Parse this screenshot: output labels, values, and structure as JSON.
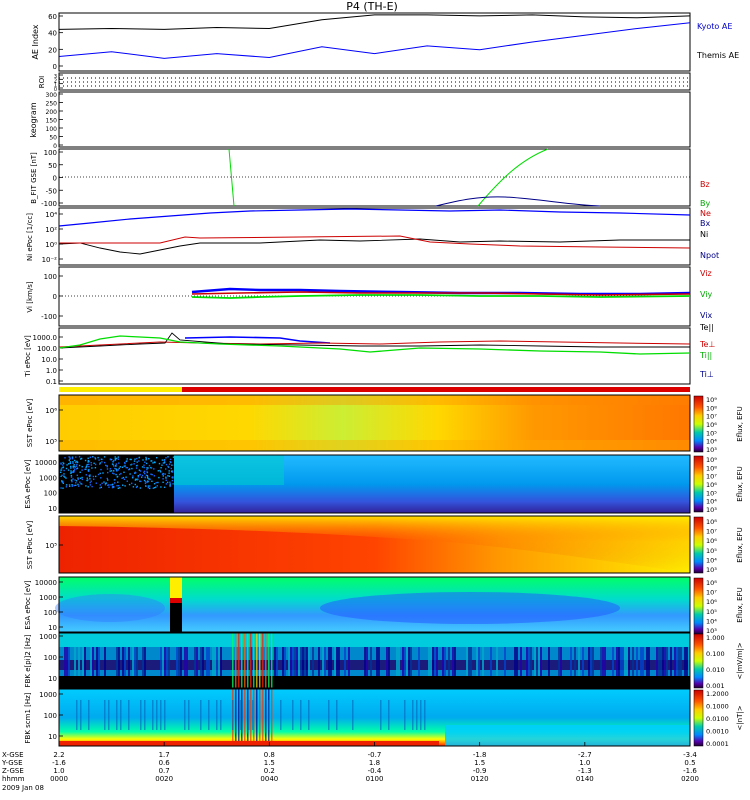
{
  "title": "P4 (TH-E)",
  "colors": {
    "red": "#ff0000",
    "green": "#00dd00",
    "blue": "#0000ff",
    "black": "#000000",
    "dark_red": "#cc0000",
    "purple": "#000088"
  },
  "chart_data": [
    {
      "type": "line",
      "panel": "ae",
      "ylabel": "AE Index",
      "ylim": [
        0,
        60
      ],
      "yticks": [
        "0",
        "20",
        "40",
        "60"
      ],
      "series": [
        {
          "name": "Kyoto AE",
          "color": "#0000ff",
          "x_min": [
            0,
            10,
            20,
            30,
            40,
            50,
            60,
            70,
            80,
            90,
            100,
            110,
            120
          ],
          "values": [
            43,
            44,
            43,
            45,
            44,
            53,
            58,
            58,
            57,
            58,
            56,
            55,
            57
          ]
        },
        {
          "name": "Themis AE",
          "color": "#000000",
          "x_min": [
            0,
            10,
            20,
            30,
            40,
            50,
            60,
            70,
            80,
            90,
            100,
            110,
            120
          ],
          "values": [
            15,
            20,
            13,
            18,
            14,
            25,
            18,
            26,
            22,
            30,
            37,
            44,
            50
          ]
        }
      ]
    },
    {
      "type": "line",
      "panel": "roi",
      "ylabel": "ROI",
      "ylim": [
        0,
        3
      ],
      "yticks": [
        "0",
        "1",
        "2",
        "3"
      ]
    },
    {
      "type": "heatmap",
      "panel": "keogram",
      "ylabel": "keogram",
      "ylim": [
        0,
        300
      ],
      "yticks": [
        "0",
        "50",
        "100",
        "150",
        "200",
        "250",
        "300"
      ]
    },
    {
      "type": "line",
      "panel": "bfit",
      "ylabel": "B_FIT GSE [nT]",
      "ylim": [
        -100,
        100
      ],
      "yticks": [
        "100",
        "50",
        "0",
        "-50",
        "-100"
      ],
      "series": [
        {
          "name": "Bz",
          "color": "#cc0000"
        },
        {
          "name": "By",
          "color": "#00dd00"
        },
        {
          "name": "Bx",
          "color": "#000088"
        }
      ]
    },
    {
      "type": "line",
      "panel": "density",
      "ylabel": "Ni ePoc [1/cc]",
      "scale": "log",
      "yticks": [
        "10⁴",
        "10²",
        "10⁰",
        "10⁻²"
      ],
      "series": [
        {
          "name": "Ne",
          "color": "#cc0000"
        },
        {
          "name": "Ni",
          "color": "#000000"
        },
        {
          "name": "Npot",
          "color": "#000088"
        }
      ]
    },
    {
      "type": "line",
      "panel": "velocity",
      "ylabel": "Vi [km/s]",
      "ylim": [
        -150,
        150
      ],
      "yticks": [
        "100",
        "0",
        "-100"
      ],
      "series": [
        {
          "name": "Viz",
          "color": "#cc0000"
        },
        {
          "name": "Viy",
          "color": "#00dd00"
        },
        {
          "name": "Vix",
          "color": "#000088"
        }
      ]
    },
    {
      "type": "line",
      "panel": "temperature",
      "ylabel": "Ti ePoc [eV]",
      "scale": "log",
      "yticks": [
        "1000.0",
        "100.0",
        "10.0",
        "1.0",
        "0.1"
      ],
      "series": [
        {
          "name": "Te||",
          "color": "#000000"
        },
        {
          "name": "Te⊥",
          "color": "#cc0000"
        },
        {
          "name": "Ti||",
          "color": "#00dd00"
        },
        {
          "name": "Ti⊥",
          "color": "#000088"
        }
      ]
    },
    {
      "type": "heatmap",
      "panel": "sst_e",
      "ylabel": "SST ePoc [eV]",
      "yticks": [
        "10⁶",
        "10⁵"
      ],
      "colorbar": {
        "label": "Eflux, EFU",
        "ticks": [
          "10⁹",
          "10⁸",
          "10⁷",
          "10⁶",
          "10⁵",
          "10⁴",
          "10³"
        ]
      }
    },
    {
      "type": "heatmap",
      "panel": "esa_e",
      "ylabel": "ESA ePoc [eV]",
      "yticks": [
        "10000",
        "1000",
        "100",
        "10"
      ],
      "colorbar": {
        "label": "Eflux, EFU",
        "ticks": [
          "10⁹",
          "10⁸",
          "10⁷",
          "10⁶",
          "10⁵",
          "10⁴",
          "10³"
        ]
      }
    },
    {
      "type": "heatmap",
      "panel": "sst_i",
      "ylabel": "SST ePoc [eV]",
      "yticks": [
        "10⁵"
      ],
      "colorbar": {
        "label": "Eflux, EFU",
        "ticks": [
          "10⁸",
          "10⁷",
          "10⁶",
          "10⁵",
          "10⁴",
          "10³"
        ]
      }
    },
    {
      "type": "heatmap",
      "panel": "esa_i",
      "ylabel": "ESA ePoc [eV]",
      "yticks": [
        "10000",
        "1000",
        "100",
        "10"
      ],
      "colorbar": {
        "label": "Eflux, EFU",
        "ticks": [
          "10⁸",
          "10⁷",
          "10⁶",
          "10⁵",
          "10⁴",
          "10³"
        ]
      }
    },
    {
      "type": "heatmap",
      "panel": "fbk_e",
      "ylabel": "FBK e[pi]2 [Hz]",
      "yticks": [
        "1000",
        "100",
        "10"
      ],
      "colorbar": {
        "label": "<|mV/m|>",
        "ticks": [
          "1.000",
          "0.100",
          "0.010",
          "0.001"
        ]
      }
    },
    {
      "type": "heatmap",
      "panel": "fbk_b",
      "ylabel": "FBK scm1 [Hz]",
      "yticks": [
        "1000",
        "100",
        "10"
      ],
      "colorbar": {
        "label": "<|nT|>",
        "ticks": [
          "1.2000",
          "0.1000",
          "0.0100",
          "0.0010",
          "0.0001"
        ]
      }
    }
  ],
  "xaxis": {
    "row_labels": [
      "X-GSE",
      "Y-GSE",
      "Z-GSE",
      "hhmm",
      "2009 Jan 08"
    ],
    "columns": [
      [
        "2.2",
        "-1.6",
        "1.0",
        "0000"
      ],
      [
        "1.7",
        "0.6",
        "0.7",
        "0020"
      ],
      [
        "0.8",
        "1.5",
        "0.2",
        "0040"
      ],
      [
        "-0.7",
        "1.8",
        "-0.4",
        "0100"
      ],
      [
        "-1.8",
        "1.5",
        "-0.9",
        "0120"
      ],
      [
        "-2.7",
        "1.0",
        "-1.3",
        "0140"
      ],
      [
        "-3.4",
        "0.5",
        "-1.6",
        "0200"
      ]
    ]
  }
}
